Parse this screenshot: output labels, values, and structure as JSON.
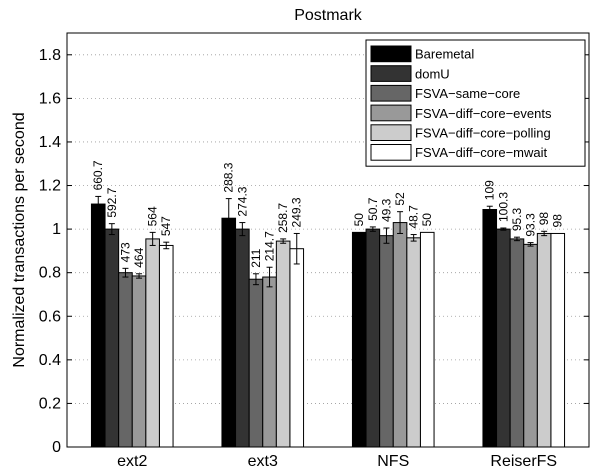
{
  "chart_data": {
    "type": "bar",
    "title": "Postmark",
    "xlabel": "",
    "ylabel": "Normalized transactions per second",
    "ylim": [
      0,
      1.9
    ],
    "yticks": [
      "0",
      "0.2",
      "0.4",
      "0.6",
      "0.8",
      "1",
      "1.2",
      "1.4",
      "1.6",
      "1.8"
    ],
    "categories": [
      "ext2",
      "ext3",
      "NFS",
      "ReiserFS"
    ],
    "grid": true,
    "legend_position": "top-right",
    "series": [
      {
        "name": "Baremetal",
        "color": "#000000",
        "values": [
          1.115,
          1.05,
          0.985,
          1.09
        ],
        "errors": [
          0.035,
          0.09,
          0.0,
          0.015
        ],
        "labels": [
          "660.7",
          "288.3",
          "50",
          "109"
        ]
      },
      {
        "name": "domU",
        "color": "#333333",
        "values": [
          1.0,
          1.0,
          1.0,
          1.0
        ],
        "errors": [
          0.025,
          0.03,
          0.01,
          0.005
        ],
        "labels": [
          "592.7",
          "274.3",
          "50.7",
          "100.3"
        ]
      },
      {
        "name": "FSVA−same−core",
        "color": "#666666",
        "values": [
          0.8,
          0.77,
          0.97,
          0.955
        ],
        "errors": [
          0.02,
          0.025,
          0.035,
          0.008
        ],
        "labels": [
          "473",
          "211",
          "49.3",
          "95.3"
        ]
      },
      {
        "name": "FSVA−diff−core−events",
        "color": "#999999",
        "values": [
          0.785,
          0.78,
          1.03,
          0.93
        ],
        "errors": [
          0.01,
          0.045,
          0.05,
          0.008
        ],
        "labels": [
          "464",
          "214.7",
          "52",
          "93.3"
        ]
      },
      {
        "name": "FSVA−diff−core−polling",
        "color": "#cccccc",
        "values": [
          0.955,
          0.945,
          0.96,
          0.98
        ],
        "errors": [
          0.03,
          0.01,
          0.015,
          0.01
        ],
        "labels": [
          "564",
          "258.7",
          "48.7",
          "98"
        ]
      },
      {
        "name": "FSVA−diff−core−mwait",
        "color": "#ffffff",
        "values": [
          0.925,
          0.91,
          0.985,
          0.98
        ],
        "errors": [
          0.015,
          0.07,
          0.0,
          0.0
        ],
        "labels": [
          "547",
          "249.3",
          "50",
          "98"
        ]
      }
    ]
  }
}
